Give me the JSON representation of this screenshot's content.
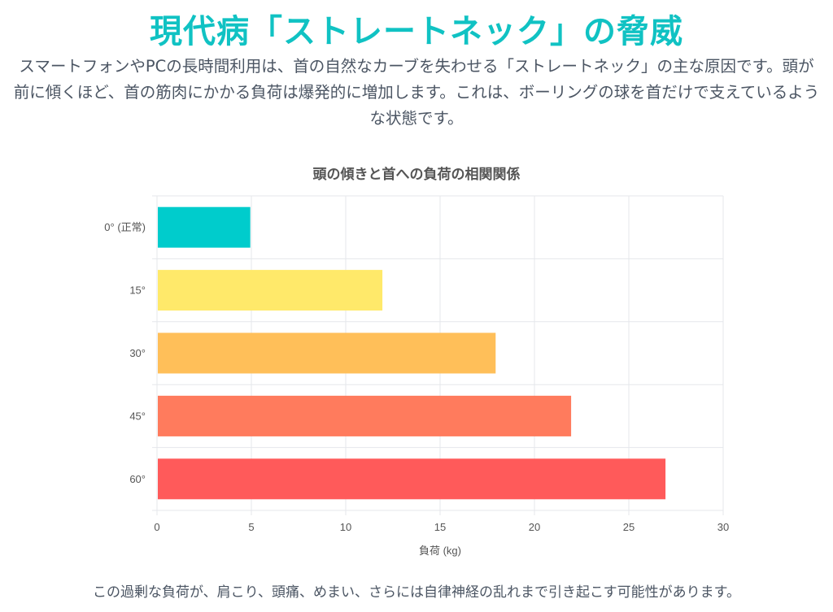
{
  "page": {
    "title": "現代病「ストレートネック」の脅威",
    "intro": "スマートフォンやPCの長時間利用は、首の自然なカーブを失わせる「ストレートネック」の主な原因です。頭が前に傾くほど、首の筋肉にかかる負荷は爆発的に増加します。これは、ボーリングの球を首だけで支えているような状態です。",
    "footer": "この過剰な負荷が、肩こり、頭痛、めまい、さらには自律神経の乱れまで引き起こす可能性があります。"
  },
  "colors": {
    "title": "#10c2c3",
    "text": "#4b5563",
    "grid": "#e5e7eb"
  },
  "chart_data": {
    "type": "bar",
    "orientation": "horizontal",
    "title": "頭の傾きと首への負荷の相関関係",
    "categories": [
      "0° (正常)",
      "15°",
      "30°",
      "45°",
      "60°"
    ],
    "values": [
      4.9,
      11.9,
      17.9,
      21.9,
      26.9
    ],
    "bar_colors": [
      "#00cccc",
      "#ffe96a",
      "#ffbf59",
      "#ff7b5d",
      "#ff5a5a"
    ],
    "xlabel": "負荷 (kg)",
    "ylabel": "",
    "xlim": [
      0,
      30
    ],
    "x_ticks": [
      0,
      5,
      10,
      15,
      20,
      25,
      30
    ],
    "grid": true,
    "legend": "none"
  }
}
